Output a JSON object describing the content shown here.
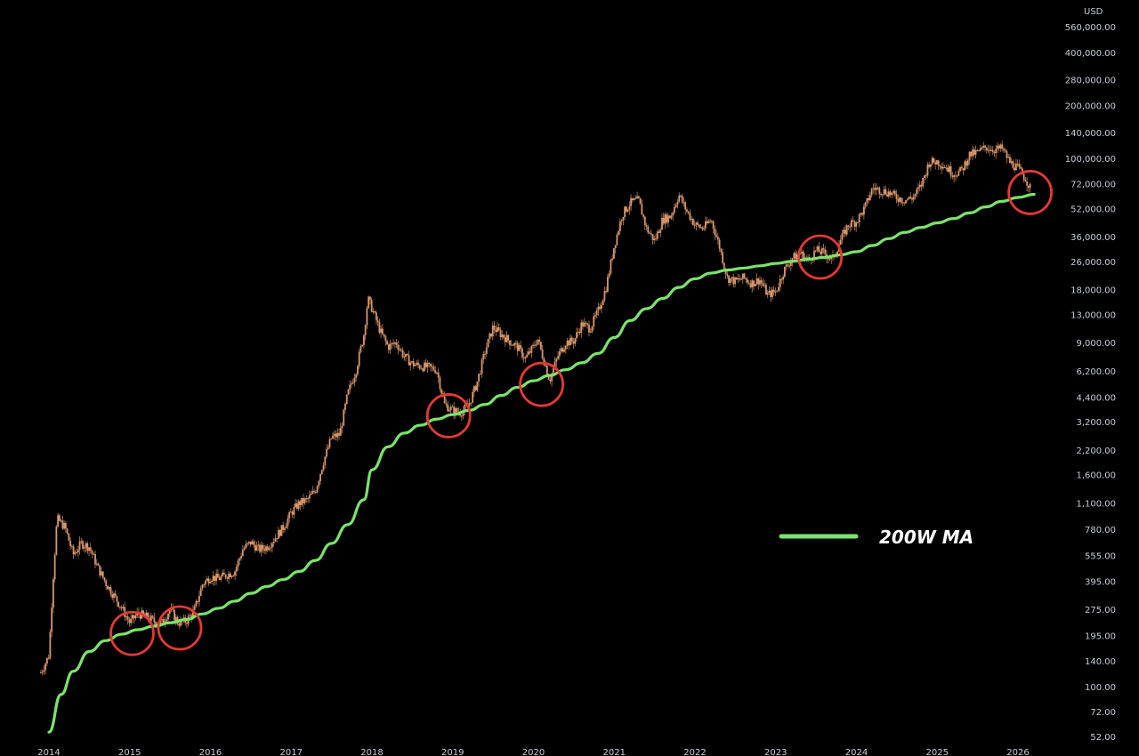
{
  "chart_data": {
    "type": "candlestick",
    "scale": "log",
    "currency_label": "USD",
    "ylim": [
      52,
      560000
    ],
    "xlim": [
      2013.9,
      2026.4
    ],
    "y_ticks": [
      {
        "value": 560000,
        "label": "560,000.00"
      },
      {
        "value": 400000,
        "label": "400,000.00"
      },
      {
        "value": 280000,
        "label": "280,000.00"
      },
      {
        "value": 200000,
        "label": "200,000.00"
      },
      {
        "value": 140000,
        "label": "140,000.00"
      },
      {
        "value": 100000,
        "label": "100,000.00"
      },
      {
        "value": 72000,
        "label": "72,000.00"
      },
      {
        "value": 52000,
        "label": "52,000.00"
      },
      {
        "value": 36000,
        "label": "36,000.00"
      },
      {
        "value": 26000,
        "label": "26,000.00"
      },
      {
        "value": 18000,
        "label": "18,000.00"
      },
      {
        "value": 13000,
        "label": "13,000.00"
      },
      {
        "value": 9000,
        "label": "9,000.00"
      },
      {
        "value": 6200,
        "label": "6,200.00"
      },
      {
        "value": 4400,
        "label": "4,400.00"
      },
      {
        "value": 3200,
        "label": "3,200.00"
      },
      {
        "value": 2200,
        "label": "2,200.00"
      },
      {
        "value": 1600,
        "label": "1,600.00"
      },
      {
        "value": 1100,
        "label": "1,100.00"
      },
      {
        "value": 780,
        "label": "780.00"
      },
      {
        "value": 555,
        "label": "555.00"
      },
      {
        "value": 395,
        "label": "395.00"
      },
      {
        "value": 275,
        "label": "275.00"
      },
      {
        "value": 195,
        "label": "195.00"
      },
      {
        "value": 140,
        "label": "140.00"
      },
      {
        "value": 100,
        "label": "100.00"
      },
      {
        "value": 72,
        "label": "72.00"
      },
      {
        "value": 52,
        "label": "52.00"
      }
    ],
    "x_ticks": [
      {
        "value": 2014,
        "label": "2014"
      },
      {
        "value": 2015,
        "label": "2015"
      },
      {
        "value": 2016,
        "label": "2016"
      },
      {
        "value": 2017,
        "label": "2017"
      },
      {
        "value": 2018,
        "label": "2018"
      },
      {
        "value": 2019,
        "label": "2019"
      },
      {
        "value": 2020,
        "label": "2020"
      },
      {
        "value": 2021,
        "label": "2021"
      },
      {
        "value": 2022,
        "label": "2022"
      },
      {
        "value": 2023,
        "label": "2023"
      },
      {
        "value": 2024,
        "label": "2024"
      },
      {
        "value": 2025,
        "label": "2025"
      },
      {
        "value": 2026,
        "label": "2026"
      }
    ],
    "price_anchors": [
      [
        2013.9,
        120
      ],
      [
        2014.0,
        150
      ],
      [
        2014.05,
        400
      ],
      [
        2014.1,
        900
      ],
      [
        2014.2,
        800
      ],
      [
        2014.3,
        560
      ],
      [
        2014.4,
        650
      ],
      [
        2014.5,
        620
      ],
      [
        2014.6,
        480
      ],
      [
        2014.7,
        390
      ],
      [
        2014.8,
        330
      ],
      [
        2014.9,
        280
      ],
      [
        2015.0,
        230
      ],
      [
        2015.1,
        260
      ],
      [
        2015.2,
        250
      ],
      [
        2015.3,
        235
      ],
      [
        2015.4,
        230
      ],
      [
        2015.5,
        275
      ],
      [
        2015.6,
        230
      ],
      [
        2015.7,
        235
      ],
      [
        2015.8,
        270
      ],
      [
        2015.9,
        380
      ],
      [
        2016.0,
        420
      ],
      [
        2016.1,
        410
      ],
      [
        2016.2,
        430
      ],
      [
        2016.3,
        450
      ],
      [
        2016.4,
        600
      ],
      [
        2016.5,
        660
      ],
      [
        2016.6,
        600
      ],
      [
        2016.7,
        620
      ],
      [
        2016.8,
        700
      ],
      [
        2016.9,
        800
      ],
      [
        2017.0,
        970
      ],
      [
        2017.1,
        1100
      ],
      [
        2017.2,
        1150
      ],
      [
        2017.3,
        1300
      ],
      [
        2017.4,
        1900
      ],
      [
        2017.5,
        2600
      ],
      [
        2017.6,
        2700
      ],
      [
        2017.7,
        4600
      ],
      [
        2017.8,
        6200
      ],
      [
        2017.9,
        10000
      ],
      [
        2017.95,
        16000
      ],
      [
        2018.0,
        14000
      ],
      [
        2018.1,
        10500
      ],
      [
        2018.2,
        8500
      ],
      [
        2018.3,
        9000
      ],
      [
        2018.4,
        7500
      ],
      [
        2018.5,
        6800
      ],
      [
        2018.6,
        6600
      ],
      [
        2018.7,
        6500
      ],
      [
        2018.8,
        6300
      ],
      [
        2018.9,
        4000
      ],
      [
        2019.0,
        3700
      ],
      [
        2019.1,
        3600
      ],
      [
        2019.2,
        4000
      ],
      [
        2019.3,
        5300
      ],
      [
        2019.4,
        8000
      ],
      [
        2019.5,
        11000
      ],
      [
        2019.6,
        10000
      ],
      [
        2019.7,
        9200
      ],
      [
        2019.8,
        8500
      ],
      [
        2019.9,
        7300
      ],
      [
        2020.0,
        8500
      ],
      [
        2020.05,
        9500
      ],
      [
        2020.2,
        5500
      ],
      [
        2020.3,
        7500
      ],
      [
        2020.4,
        9000
      ],
      [
        2020.5,
        9200
      ],
      [
        2020.6,
        11500
      ],
      [
        2020.7,
        10800
      ],
      [
        2020.8,
        13500
      ],
      [
        2020.9,
        18500
      ],
      [
        2021.0,
        32000
      ],
      [
        2021.1,
        48000
      ],
      [
        2021.2,
        56000
      ],
      [
        2021.3,
        58000
      ],
      [
        2021.4,
        40000
      ],
      [
        2021.5,
        34000
      ],
      [
        2021.6,
        45000
      ],
      [
        2021.7,
        47000
      ],
      [
        2021.8,
        62000
      ],
      [
        2021.9,
        50000
      ],
      [
        2022.0,
        42000
      ],
      [
        2022.1,
        40000
      ],
      [
        2022.2,
        45000
      ],
      [
        2022.3,
        32000
      ],
      [
        2022.4,
        21000
      ],
      [
        2022.5,
        20000
      ],
      [
        2022.6,
        21000
      ],
      [
        2022.7,
        19500
      ],
      [
        2022.8,
        20500
      ],
      [
        2022.9,
        16800
      ],
      [
        2023.0,
        17500
      ],
      [
        2023.1,
        23000
      ],
      [
        2023.2,
        27000
      ],
      [
        2023.3,
        29000
      ],
      [
        2023.4,
        26500
      ],
      [
        2023.5,
        30000
      ],
      [
        2023.6,
        29000
      ],
      [
        2023.7,
        26500
      ],
      [
        2023.8,
        34000
      ],
      [
        2023.9,
        42000
      ],
      [
        2024.0,
        44000
      ],
      [
        2024.1,
        52000
      ],
      [
        2024.2,
        68000
      ],
      [
        2024.3,
        66000
      ],
      [
        2024.4,
        64000
      ],
      [
        2024.5,
        60000
      ],
      [
        2024.6,
        58000
      ],
      [
        2024.7,
        60000
      ],
      [
        2024.8,
        70000
      ],
      [
        2024.9,
        95000
      ],
      [
        2025.0,
        96000
      ],
      [
        2025.1,
        90000
      ],
      [
        2025.2,
        82000
      ],
      [
        2025.3,
        85000
      ],
      [
        2025.4,
        105000
      ],
      [
        2025.5,
        108000
      ],
      [
        2025.6,
        116000
      ],
      [
        2025.7,
        112000
      ],
      [
        2025.8,
        114000
      ],
      [
        2025.9,
        95000
      ],
      [
        2026.0,
        88000
      ],
      [
        2026.1,
        76000
      ],
      [
        2026.15,
        68000
      ]
    ],
    "series": [
      {
        "name": "200W MA",
        "color": "#7be36b",
        "values": [
          [
            2014.0,
            55
          ],
          [
            2014.15,
            90
          ],
          [
            2014.3,
            122
          ],
          [
            2014.5,
            158
          ],
          [
            2014.7,
            182
          ],
          [
            2014.9,
            198
          ],
          [
            2015.1,
            210
          ],
          [
            2015.3,
            220
          ],
          [
            2015.5,
            230
          ],
          [
            2015.7,
            240
          ],
          [
            2015.9,
            258
          ],
          [
            2016.1,
            278
          ],
          [
            2016.3,
            305
          ],
          [
            2016.5,
            338
          ],
          [
            2016.7,
            370
          ],
          [
            2016.9,
            405
          ],
          [
            2017.1,
            450
          ],
          [
            2017.3,
            520
          ],
          [
            2017.5,
            650
          ],
          [
            2017.7,
            830
          ],
          [
            2017.9,
            1150
          ],
          [
            2018.0,
            1700
          ],
          [
            2018.2,
            2300
          ],
          [
            2018.4,
            2750
          ],
          [
            2018.6,
            3050
          ],
          [
            2018.8,
            3300
          ],
          [
            2019.0,
            3500
          ],
          [
            2019.2,
            3700
          ],
          [
            2019.4,
            4000
          ],
          [
            2019.6,
            4500
          ],
          [
            2019.8,
            5000
          ],
          [
            2020.0,
            5450
          ],
          [
            2020.2,
            5850
          ],
          [
            2020.4,
            6300
          ],
          [
            2020.6,
            6900
          ],
          [
            2020.8,
            7800
          ],
          [
            2021.0,
            9600
          ],
          [
            2021.2,
            12000
          ],
          [
            2021.4,
            14000
          ],
          [
            2021.6,
            16000
          ],
          [
            2021.8,
            18500
          ],
          [
            2022.0,
            20700
          ],
          [
            2022.2,
            22300
          ],
          [
            2022.4,
            23200
          ],
          [
            2022.6,
            23800
          ],
          [
            2022.8,
            24500
          ],
          [
            2023.0,
            25300
          ],
          [
            2023.2,
            26000
          ],
          [
            2023.4,
            26700
          ],
          [
            2023.6,
            27400
          ],
          [
            2023.8,
            28300
          ],
          [
            2024.0,
            29500
          ],
          [
            2024.2,
            32000
          ],
          [
            2024.4,
            35000
          ],
          [
            2024.6,
            38000
          ],
          [
            2024.8,
            40500
          ],
          [
            2025.0,
            43000
          ],
          [
            2025.2,
            45500
          ],
          [
            2025.4,
            49000
          ],
          [
            2025.6,
            53000
          ],
          [
            2025.8,
            57000
          ],
          [
            2026.0,
            60000
          ],
          [
            2026.2,
            62500
          ]
        ]
      }
    ],
    "annotations": {
      "circles": [
        {
          "x": 2015.03,
          "y": 200,
          "color": "#e53935"
        },
        {
          "x": 2015.62,
          "y": 215,
          "color": "#e53935"
        },
        {
          "x": 2018.95,
          "y": 3450,
          "color": "#e53935"
        },
        {
          "x": 2020.1,
          "y": 5200,
          "color": "#e53935"
        },
        {
          "x": 2023.55,
          "y": 27500,
          "color": "#e53935"
        },
        {
          "x": 2026.15,
          "y": 64000,
          "color": "#e53935"
        }
      ]
    },
    "legend": {
      "label": "200W MA",
      "color": "#7be36b",
      "placement": "lower-right"
    },
    "colors": {
      "background": "#000000",
      "candle": "#d9976a",
      "axis_text": "#c8ccd4"
    }
  }
}
